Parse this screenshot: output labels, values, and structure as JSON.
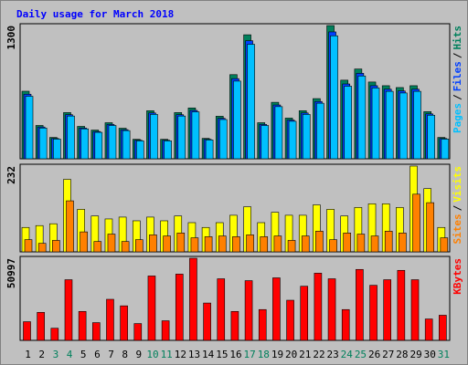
{
  "chart_data": {
    "type": "multi-panel",
    "title": "Daily usage for March 2018",
    "categories": [
      "1",
      "2",
      "3",
      "4",
      "5",
      "6",
      "7",
      "8",
      "9",
      "10",
      "11",
      "12",
      "13",
      "14",
      "15",
      "16",
      "17",
      "18",
      "19",
      "20",
      "21",
      "22",
      "23",
      "24",
      "25",
      "26",
      "27",
      "28",
      "29",
      "30",
      "31"
    ],
    "category_colors": [
      "#000000",
      "#000000",
      "#00805c",
      "#00805c",
      "#000000",
      "#000000",
      "#000000",
      "#000000",
      "#000000",
      "#00805c",
      "#00805c",
      "#000000",
      "#000000",
      "#000000",
      "#000000",
      "#000000",
      "#00805c",
      "#00805c",
      "#000000",
      "#000000",
      "#000000",
      "#000000",
      "#000000",
      "#00805c",
      "#00805c",
      "#000000",
      "#000000",
      "#000000",
      "#000000",
      "#000000",
      "#00805c"
    ],
    "panels": [
      {
        "type": "bar",
        "ylim": [
          0,
          1300
        ],
        "yticks": [
          1300
        ],
        "legend_separator": "/",
        "series": [
          {
            "name": "Hits",
            "color": "#00805c",
            "values": [
              659,
              325,
              208,
              451,
              316,
              280,
              352,
              298,
              190,
              469,
              190,
              451,
              496,
              199,
              415,
              821,
              1210,
              352,
              551,
              397,
              469,
              587,
              1300,
              767,
              876,
              749,
              713,
              695,
              713,
              460,
              208
            ]
          },
          {
            "name": "Files",
            "color": "#0040ff",
            "values": [
              630,
              310,
              198,
              430,
              300,
              266,
              335,
              284,
              181,
              447,
              181,
              430,
              472,
              190,
              395,
              782,
              1152,
              335,
              525,
              378,
              447,
              559,
              1238,
              730,
              834,
              713,
              679,
              662,
              679,
              438,
              198
            ]
          },
          {
            "name": "Pages",
            "color": "#00c0ff",
            "values": [
              610,
              300,
              192,
              417,
              292,
              258,
              325,
              275,
              175,
              433,
              175,
              417,
              458,
              184,
              383,
              758,
              1117,
              325,
              509,
              366,
              433,
              542,
              1200,
              708,
              808,
              691,
              658,
              642,
              658,
              425,
              192
            ]
          }
        ]
      },
      {
        "type": "bar",
        "ylim": [
          0,
          232
        ],
        "yticks": [
          232
        ],
        "legend_separator": "/",
        "series": [
          {
            "name": "Visits",
            "color": "#ffff00",
            "values": [
              66,
              71,
              76,
              196,
              115,
              97,
              89,
              94,
              84,
              94,
              84,
              97,
              79,
              66,
              79,
              99,
              122,
              79,
              107,
              99,
              99,
              127,
              115,
              97,
              120,
              130,
              130,
              120,
              232,
              171,
              66
            ]
          },
          {
            "name": "Sites",
            "color": "#ff8000",
            "values": [
              33,
              23,
              31,
              138,
              54,
              28,
              48,
              28,
              33,
              46,
              43,
              51,
              38,
              41,
              43,
              41,
              46,
              41,
              43,
              31,
              43,
              56,
              33,
              51,
              48,
              43,
              56,
              51,
              156,
              133,
              38
            ]
          }
        ]
      },
      {
        "type": "bar",
        "ylim": [
          0,
          50997
        ],
        "yticks": [
          50997
        ],
        "series": [
          {
            "name": "KBytes",
            "color": "#ff0000",
            "values": [
              11590,
              17385,
              7534,
              37668,
              17965,
              11010,
              25496,
              21440,
              10431,
              39986,
              12170,
              41145,
              50997,
              23178,
              38248,
              17965,
              37089,
              19123,
              38827,
              24917,
              33610,
              41725,
              38248,
              19123,
              44043,
              34190,
              37668,
              43463,
              37668,
              13282,
              15600
            ]
          }
        ]
      }
    ]
  }
}
